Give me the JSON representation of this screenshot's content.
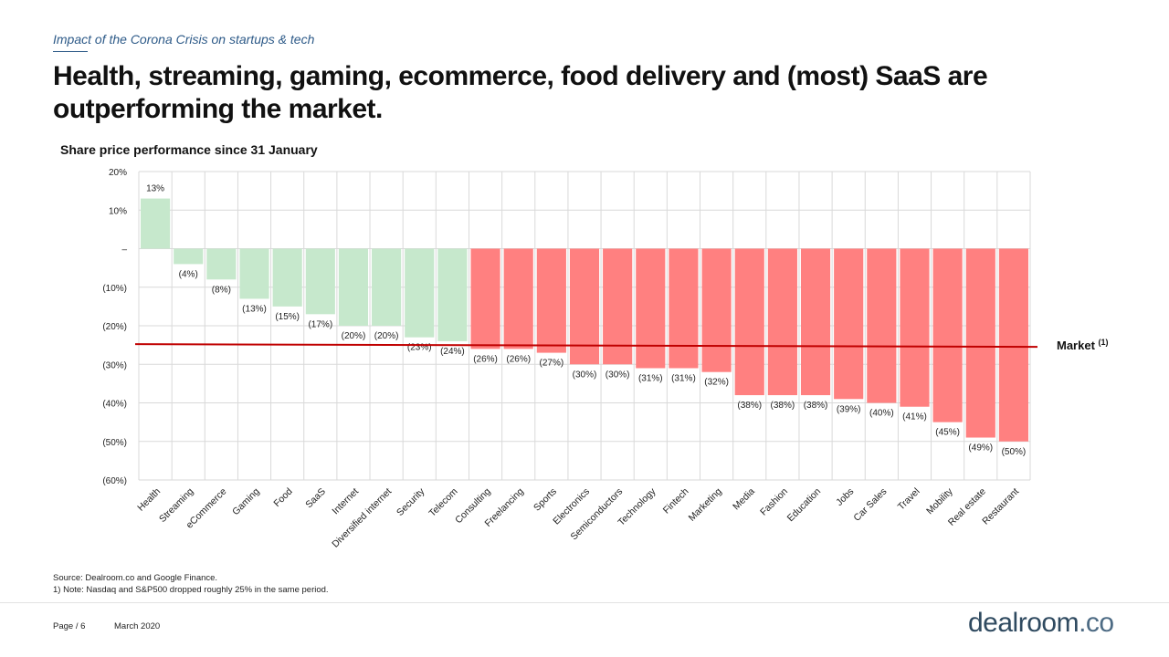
{
  "header": {
    "subtitle": "Impact of the Corona Crisis on startups & tech",
    "title_line1": "Health, streaming, gaming, ecommerce, food delivery and (most) SaaS are",
    "title_line2": "outperforming the market."
  },
  "chart_data": {
    "type": "bar",
    "title": "Share price performance since 31 January",
    "xlabel": "",
    "ylabel": "",
    "ylim": [
      -60,
      20
    ],
    "yticks": [
      20,
      10,
      0,
      -10,
      -20,
      -30,
      -40,
      -50,
      -60
    ],
    "ytick_labels": [
      "20%",
      "10%",
      "–",
      "(10%)",
      "(20%)",
      "(30%)",
      "(40%)",
      "(50%)",
      "(60%)"
    ],
    "grid": true,
    "categories": [
      "Health",
      "Streaming",
      "eCommerce",
      "Gaming",
      "Food",
      "SaaS",
      "Internet",
      "Diversified internet",
      "Security",
      "Telecom",
      "Consulting",
      "Freelancing",
      "Sports",
      "Electronics",
      "Semiconductors",
      "Technology",
      "Fintech",
      "Marketing",
      "Media",
      "Fashion",
      "Education",
      "Jobs",
      "Car Sales",
      "Travel",
      "Mobility",
      "Real estate",
      "Restaurant"
    ],
    "values": [
      13,
      -4,
      -8,
      -13,
      -15,
      -17,
      -20,
      -20,
      -23,
      -24,
      -26,
      -26,
      -27,
      -30,
      -30,
      -31,
      -31,
      -32,
      -38,
      -38,
      -38,
      -39,
      -40,
      -41,
      -45,
      -49,
      -50
    ],
    "data_labels": [
      "13%",
      "(4%)",
      "(8%)",
      "(13%)",
      "(15%)",
      "(17%)",
      "(20%)",
      "(20%)",
      "(23%)",
      "(24%)",
      "(26%)",
      "(26%)",
      "(27%)",
      "(30%)",
      "(30%)",
      "(31%)",
      "(31%)",
      "(32%)",
      "(38%)",
      "(38%)",
      "(38%)",
      "(39%)",
      "(40%)",
      "(41%)",
      "(45%)",
      "(49%)",
      "(50%)"
    ],
    "outperform_count": 10,
    "colors": {
      "outperform": "#c6e8cc",
      "underperform": "#ff8080",
      "market_line": "#c00000",
      "grid": "#d9d9d9"
    },
    "market_line": {
      "label": "Market",
      "label_sup": "(1)",
      "value": -25
    }
  },
  "footnotes": {
    "source": "Source: Dealroom.co and Google Finance.",
    "note": "1) Note: Nasdaq and S&P500 dropped roughly 25% in the same period."
  },
  "footer": {
    "page": "Page / 6",
    "date": "March 2020",
    "logo_main": "dealroom",
    "logo_suffix": ".co"
  }
}
